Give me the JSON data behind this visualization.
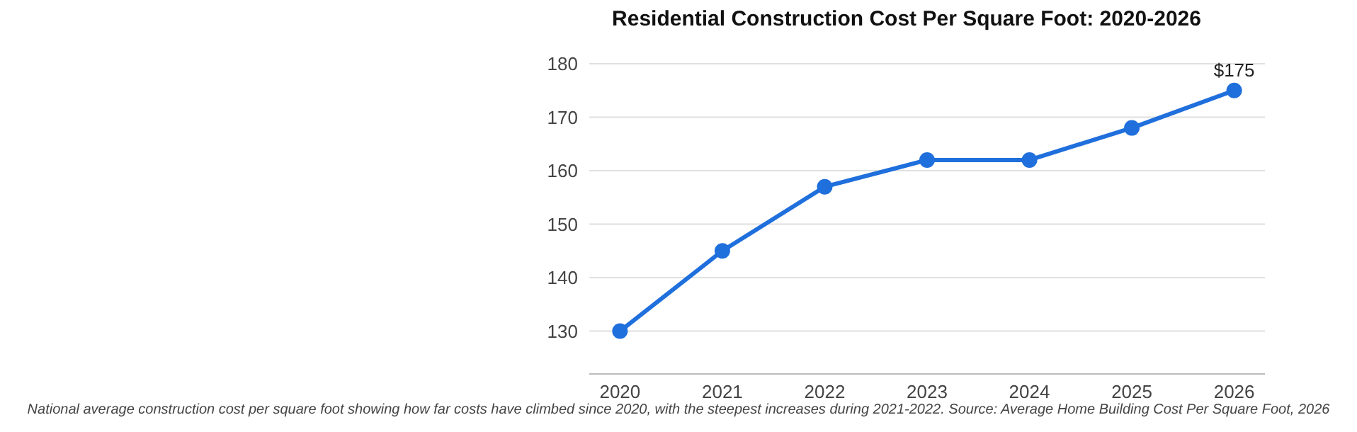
{
  "chart_data": {
    "type": "line",
    "title": "Residential Construction Cost Per Square Foot: 2020-2026",
    "categories": [
      "2020",
      "2021",
      "2022",
      "2023",
      "2024",
      "2025",
      "2026"
    ],
    "series": [
      {
        "color": "#1f6fdc",
        "values": [
          130,
          145,
          157,
          162,
          162,
          168,
          175
        ],
        "value_labels": [
          null,
          null,
          null,
          null,
          null,
          null,
          "$175"
        ]
      }
    ],
    "ylim": [
      122,
      180
    ],
    "yticks": [
      130,
      140,
      150,
      160,
      170,
      180
    ],
    "grid": "y",
    "legend": false,
    "marker": "circle",
    "line_style": "solid",
    "annotations": [
      "National average construction cost per square foot showing how far costs have climbed since 2020, with the steepest increases during 2021-2022. Source: Average Home Building Cost Per Square Foot, 2026"
    ]
  }
}
